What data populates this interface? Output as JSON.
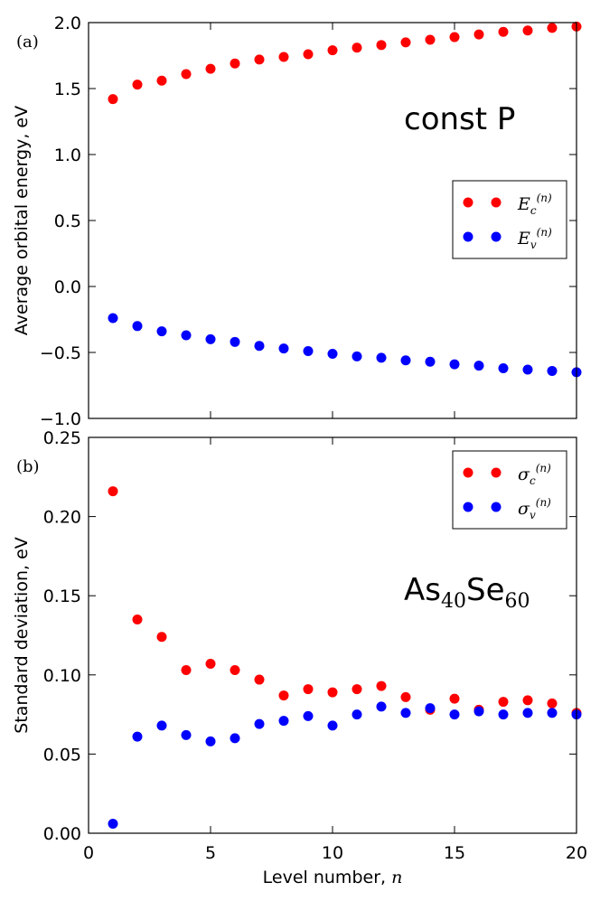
{
  "chart_data": [
    {
      "type": "scatter",
      "panel_label": "(a)",
      "ylabel": "Average orbital energy, eV",
      "xlabel": "",
      "xlim": [
        0,
        20
      ],
      "ylim": [
        -1.0,
        2.0
      ],
      "xticks": [
        0,
        5,
        10,
        15,
        20
      ],
      "yticks": [
        "−1.0",
        "−0.5",
        "0.0",
        "0.5",
        "1.0",
        "1.5",
        "2.0"
      ],
      "ytick_values": [
        -1.0,
        -0.5,
        0.0,
        0.5,
        1.0,
        1.5,
        2.0
      ],
      "annotation": "const P",
      "legend_position": "center-right",
      "series": [
        {
          "name": "E_c^(n)",
          "legend_base": "E",
          "legend_sub": "c",
          "legend_sup": "(n)",
          "color": "#ff0000",
          "x": [
            1,
            2,
            3,
            4,
            5,
            6,
            7,
            8,
            9,
            10,
            11,
            12,
            13,
            14,
            15,
            16,
            17,
            18,
            19,
            20
          ],
          "y": [
            1.42,
            1.53,
            1.56,
            1.61,
            1.65,
            1.69,
            1.72,
            1.74,
            1.76,
            1.79,
            1.81,
            1.83,
            1.85,
            1.87,
            1.89,
            1.91,
            1.93,
            1.94,
            1.96,
            1.97
          ]
        },
        {
          "name": "E_v^(n)",
          "legend_base": "E",
          "legend_sub": "v",
          "legend_sup": "(n)",
          "color": "#0000ff",
          "x": [
            1,
            2,
            3,
            4,
            5,
            6,
            7,
            8,
            9,
            10,
            11,
            12,
            13,
            14,
            15,
            16,
            17,
            18,
            19,
            20
          ],
          "y": [
            -0.24,
            -0.3,
            -0.34,
            -0.37,
            -0.4,
            -0.42,
            -0.45,
            -0.47,
            -0.49,
            -0.51,
            -0.53,
            -0.54,
            -0.56,
            -0.57,
            -0.59,
            -0.6,
            -0.62,
            -0.63,
            -0.64,
            -0.65
          ]
        }
      ]
    },
    {
      "type": "scatter",
      "panel_label": "(b)",
      "ylabel": "Standard deviation, eV",
      "xlabel": "Level number, ",
      "xlabel_var": "n",
      "xlim": [
        0,
        20
      ],
      "ylim": [
        0.0,
        0.25
      ],
      "xticks": [
        0,
        5,
        10,
        15,
        20
      ],
      "yticks": [
        "0.00",
        "0.05",
        "0.10",
        "0.15",
        "0.20",
        "0.25"
      ],
      "ytick_values": [
        0.0,
        0.05,
        0.1,
        0.15,
        0.2,
        0.25
      ],
      "annotation_parts": [
        "As",
        "40",
        "Se",
        "60"
      ],
      "legend_position": "top-right",
      "series": [
        {
          "name": "σ_c^(n)",
          "legend_base": "σ",
          "legend_sub": "c",
          "legend_sup": "(n)",
          "color": "#ff0000",
          "x": [
            1,
            2,
            3,
            4,
            5,
            6,
            7,
            8,
            9,
            10,
            11,
            12,
            13,
            14,
            15,
            16,
            17,
            18,
            19,
            20
          ],
          "y": [
            0.216,
            0.135,
            0.124,
            0.103,
            0.107,
            0.103,
            0.097,
            0.087,
            0.091,
            0.089,
            0.091,
            0.093,
            0.086,
            0.078,
            0.085,
            0.078,
            0.083,
            0.084,
            0.082,
            0.076
          ]
        },
        {
          "name": "σ_v^(n)",
          "legend_base": "σ",
          "legend_sub": "v",
          "legend_sup": "(n)",
          "color": "#0000ff",
          "x": [
            1,
            2,
            3,
            4,
            5,
            6,
            7,
            8,
            9,
            10,
            11,
            12,
            13,
            14,
            15,
            16,
            17,
            18,
            19,
            20
          ],
          "y": [
            0.006,
            0.061,
            0.068,
            0.062,
            0.058,
            0.06,
            0.069,
            0.071,
            0.074,
            0.068,
            0.075,
            0.08,
            0.076,
            0.079,
            0.075,
            0.077,
            0.075,
            0.076,
            0.076,
            0.075
          ]
        }
      ]
    }
  ]
}
